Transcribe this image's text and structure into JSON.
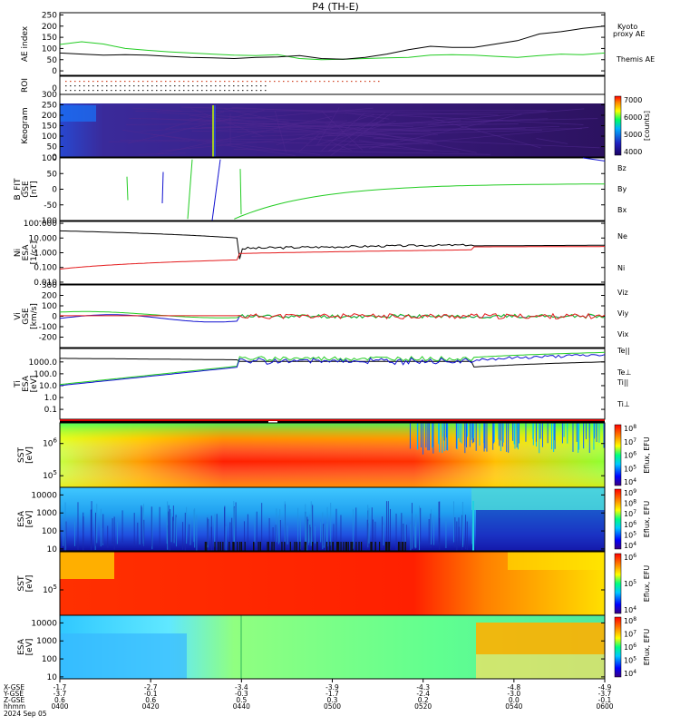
{
  "title": "P4 (TH-E)",
  "colors": {
    "red": "#e41a1c",
    "green": "#22cc22",
    "blue": "#1010d0",
    "black": "#000000"
  },
  "chart_data": [
    {
      "type": "line",
      "panel": "ae",
      "ylabel": "AE index",
      "yticks": [
        "250",
        "200",
        "150",
        "100",
        "50",
        "0"
      ],
      "ylim": [
        -20,
        260
      ],
      "x": [
        0,
        4,
        8,
        12,
        16,
        20,
        24,
        28,
        32,
        36,
        40,
        44,
        48,
        52,
        56,
        60,
        64,
        68,
        72,
        76,
        80,
        84,
        88,
        92,
        96,
        100
      ],
      "series": [
        {
          "name": "Kyoto proxy AE",
          "color": "green",
          "values": [
            118,
            130,
            120,
            100,
            92,
            85,
            80,
            75,
            70,
            68,
            72,
            55,
            50,
            52,
            55,
            58,
            60,
            70,
            72,
            70,
            65,
            60,
            68,
            75,
            72,
            80
          ]
        },
        {
          "name": "Themis AE",
          "color": "black",
          "values": [
            80,
            75,
            70,
            72,
            70,
            65,
            60,
            58,
            55,
            60,
            62,
            68,
            55,
            52,
            60,
            75,
            95,
            110,
            105,
            105,
            120,
            135,
            165,
            175,
            190,
            200
          ]
        }
      ]
    },
    {
      "type": "scatter",
      "panel": "roi",
      "ylabel": "ROI",
      "yticks": [
        "0"
      ]
    },
    {
      "type": "heatmap",
      "panel": "keogram",
      "ylabel": "Keogram",
      "yticks": [
        "300",
        "250",
        "200",
        "150",
        "100",
        "50",
        "0"
      ],
      "colorbar": {
        "label": "[counts]",
        "ticks": [
          "7000",
          "6000",
          "5000",
          "4000"
        ]
      }
    },
    {
      "type": "line",
      "panel": "bfit",
      "ylabel": "B_FIT",
      "unit": "[nT]",
      "coord": "GSE",
      "yticks": [
        "100",
        "50",
        "0",
        "-50",
        "-100"
      ],
      "ylim": [
        -100,
        100
      ],
      "legend": [
        "Bz",
        "By",
        "Bx"
      ]
    },
    {
      "type": "line",
      "panel": "ni",
      "ylabel": "Ni",
      "unit": "[1/cc]",
      "coord": "ESA",
      "scale": "log",
      "yticks": [
        "100.000",
        "10.000",
        "1.000",
        "0.100",
        "0.010"
      ],
      "legend": [
        "Ne",
        "Ni"
      ]
    },
    {
      "type": "line",
      "panel": "vi",
      "ylabel": "Vi",
      "unit": "[km/s]",
      "coord": "GSE",
      "yticks": [
        "300",
        "200",
        "100",
        "0",
        "-100",
        "-200"
      ],
      "ylim": [
        -300,
        300
      ],
      "legend": [
        "Viz",
        "Viy",
        "Vix"
      ]
    },
    {
      "type": "line",
      "panel": "ti",
      "ylabel": "Ti",
      "unit": "[eV]",
      "coord": "ESA",
      "scale": "log",
      "yticks": [
        "1000.0",
        "100.0",
        "10.0",
        "1.0",
        "0.1"
      ],
      "legend": [
        "Te||",
        "Te⊥",
        "Ti||",
        "Ti⊥"
      ]
    },
    {
      "type": "heatmap",
      "panel": "sst_e",
      "ylabel": "SST",
      "unit": "[eV]",
      "yticks": [
        "10^6",
        "10^5"
      ],
      "colorbar": {
        "label": "Eflux, EFU",
        "ticks": [
          "10^8",
          "10^7",
          "10^6",
          "10^5",
          "10^4"
        ]
      }
    },
    {
      "type": "heatmap",
      "panel": "esa_e",
      "ylabel": "ESA",
      "unit": "[eV]",
      "yticks": [
        "10000",
        "1000",
        "100",
        "10"
      ],
      "colorbar": {
        "label": "Eflux, EFU",
        "ticks": [
          "10^9",
          "10^8",
          "10^7",
          "10^6",
          "10^5",
          "10^4"
        ]
      }
    },
    {
      "type": "heatmap",
      "panel": "sst_i",
      "ylabel": "SST",
      "unit": "[eV]",
      "yticks": [
        "10^5"
      ],
      "colorbar": {
        "label": "Eflux, EFU",
        "ticks": [
          "10^6",
          "10^5",
          "10^4"
        ]
      }
    },
    {
      "type": "heatmap",
      "panel": "esa_i",
      "ylabel": "ESA",
      "unit": "[eV]",
      "yticks": [
        "10000",
        "1000",
        "100",
        "10"
      ],
      "colorbar": {
        "label": "Eflux, EFU",
        "ticks": [
          "10^8",
          "10^7",
          "10^6",
          "10^5",
          "10^4"
        ]
      }
    }
  ],
  "xaxis": {
    "row_labels": [
      "X-GSE",
      "Y-GSE",
      "Z-GSE",
      "hhmm",
      "2024 Sep 05"
    ],
    "ticks": [
      {
        "x": "-1.7",
        "y": "-3.7",
        "z": "0.6",
        "t": "0400"
      },
      {
        "x": "-2.7",
        "y": "-0.1",
        "z": "0.6",
        "t": "0420"
      },
      {
        "x": "-3.4",
        "y": "-0.3",
        "z": "0.5",
        "t": "0440"
      },
      {
        "x": "-3.9",
        "y": "-1.7",
        "z": "0.3",
        "t": "0500"
      },
      {
        "x": "-4.3",
        "y": "-2.4",
        "z": "0.2",
        "t": "0520"
      },
      {
        "x": "-4.8",
        "y": "-3.0",
        "z": "0.0",
        "t": "0540"
      },
      {
        "x": "-4.9",
        "y": "-3.7",
        "z": "-0.1",
        "t": "0600"
      }
    ]
  }
}
